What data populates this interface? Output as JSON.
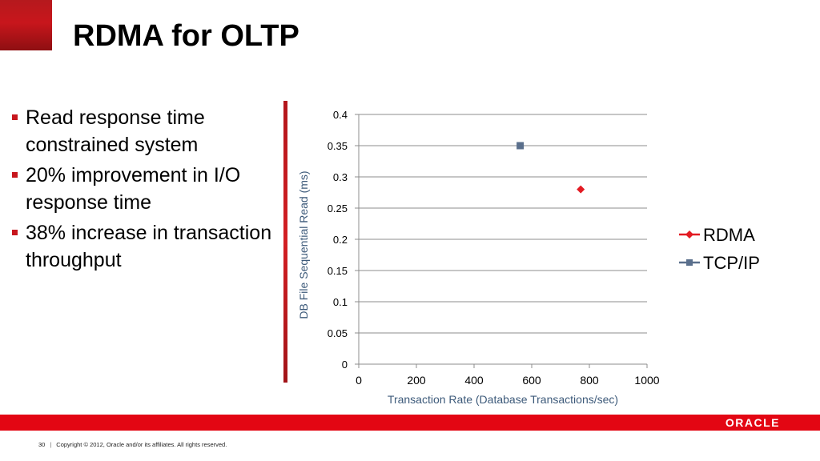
{
  "slide": {
    "title": "RDMA for OLTP",
    "bullets": [
      "Read response time constrained system",
      "20% improvement in I/O response time",
      "38% increase in transaction throughput"
    ]
  },
  "brand": {
    "logo_text": "ORACLE",
    "accent_color": "#e30613"
  },
  "footer": {
    "page_number": "30",
    "copyright": "Copyright © 2012, Oracle and/or its affiliates. All rights reserved."
  },
  "chart_data": {
    "type": "scatter",
    "title": "",
    "xlabel": "Transaction Rate (Database Transactions/sec)",
    "ylabel": "DB File Sequential Read (ms)",
    "xlim": [
      0,
      1000
    ],
    "ylim": [
      0,
      0.4
    ],
    "x_ticks": [
      "0",
      "200",
      "400",
      "600",
      "800",
      "1000"
    ],
    "y_ticks": [
      "0",
      "0.05",
      "0.1",
      "0.15",
      "0.2",
      "0.25",
      "0.3",
      "0.35",
      "0.4"
    ],
    "grid": "horizontal",
    "legend_position": "right",
    "series": [
      {
        "name": "RDMA",
        "color": "#e31b23",
        "marker": "diamond",
        "points": [
          {
            "x": 770,
            "y": 0.28
          }
        ]
      },
      {
        "name": "TCP/IP",
        "color": "#5a6f8c",
        "marker": "square",
        "points": [
          {
            "x": 560,
            "y": 0.35
          }
        ]
      }
    ]
  }
}
